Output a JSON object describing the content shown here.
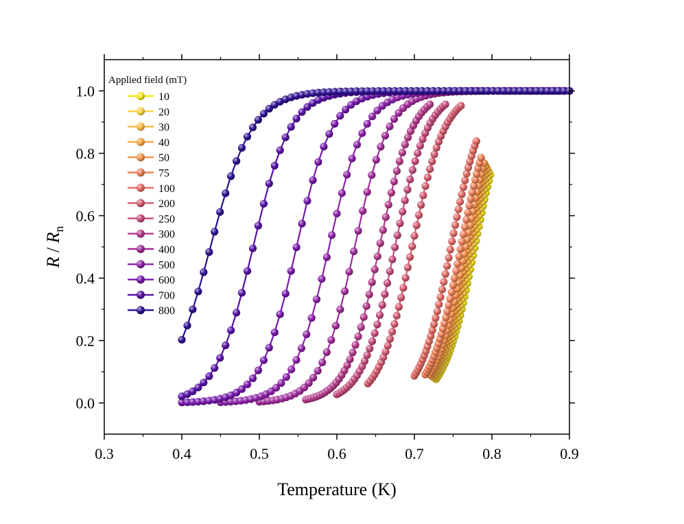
{
  "chart_data": {
    "type": "line",
    "xlabel": "Temperature (K)",
    "ylabel_main": "R",
    "ylabel_sep": " / ",
    "ylabel_var": "R",
    "ylabel_sub": "n",
    "xlim": [
      0.3,
      0.9
    ],
    "ylim": [
      -0.1,
      1.1
    ],
    "x_ticks": [
      0.3,
      0.4,
      0.5,
      0.6,
      0.7,
      0.8,
      0.9
    ],
    "x_tick_labels": [
      "0.3",
      "0.4",
      "0.5",
      "0.6",
      "0.7",
      "0.8",
      "0.9"
    ],
    "y_ticks": [
      0.0,
      0.2,
      0.4,
      0.6,
      0.8,
      1.0
    ],
    "y_tick_labels": [
      "0.0",
      "0.2",
      "0.4",
      "0.6",
      "0.8",
      "1.0"
    ],
    "grid": false,
    "legend_title": "Applied field (mT)",
    "legend_position": "top-left",
    "series": [
      {
        "name": "10",
        "color": "#f5e51b",
        "t_start": 0.728,
        "t_end": 0.798,
        "t_mid": 0.778,
        "width": 0.02,
        "n_points": 39
      },
      {
        "name": "20",
        "color": "#f7d13d",
        "t_start": 0.726,
        "t_end": 0.796,
        "t_mid": 0.775,
        "width": 0.02,
        "n_points": 39
      },
      {
        "name": "30",
        "color": "#f8b93e",
        "t_start": 0.724,
        "t_end": 0.794,
        "t_mid": 0.772,
        "width": 0.02,
        "n_points": 39
      },
      {
        "name": "40",
        "color": "#f6a443",
        "t_start": 0.722,
        "t_end": 0.792,
        "t_mid": 0.769,
        "width": 0.02,
        "n_points": 39
      },
      {
        "name": "50",
        "color": "#f39049",
        "t_start": 0.72,
        "t_end": 0.79,
        "t_mid": 0.766,
        "width": 0.02,
        "n_points": 39
      },
      {
        "name": "75",
        "color": "#ec7e56",
        "t_start": 0.714,
        "t_end": 0.786,
        "t_mid": 0.76,
        "width": 0.02,
        "n_points": 39
      },
      {
        "name": "100",
        "color": "#e06a62",
        "t_start": 0.7,
        "t_end": 0.78,
        "t_mid": 0.747,
        "width": 0.02,
        "n_points": 39
      },
      {
        "name": "200",
        "color": "#d2596d",
        "t_start": 0.64,
        "t_end": 0.76,
        "t_mid": 0.697,
        "width": 0.021,
        "n_points": 43
      },
      {
        "name": "250",
        "color": "#c34a7c",
        "t_start": 0.6,
        "t_end": 0.74,
        "t_mid": 0.675,
        "width": 0.021,
        "n_points": 44
      },
      {
        "name": "300",
        "color": "#b2398a",
        "t_start": 0.56,
        "t_end": 0.72,
        "t_mid": 0.655,
        "width": 0.021,
        "n_points": 46
      },
      {
        "name": "400",
        "color": "#9e2b99",
        "t_start": 0.5,
        "t_end": 0.9,
        "t_mid": 0.623,
        "width": 0.022,
        "n_points": 70
      },
      {
        "name": "500",
        "color": "#8a21a6",
        "t_start": 0.45,
        "t_end": 0.9,
        "t_mid": 0.59,
        "width": 0.023,
        "n_points": 70
      },
      {
        "name": "600",
        "color": "#7416a8",
        "t_start": 0.4,
        "t_end": 0.9,
        "t_mid": 0.548,
        "width": 0.023,
        "n_points": 72
      },
      {
        "name": "700",
        "color": "#5410a2",
        "t_start": 0.4,
        "t_end": 0.9,
        "t_mid": 0.492,
        "width": 0.024,
        "n_points": 72
      },
      {
        "name": "800",
        "color": "#2d0f8f",
        "t_start": 0.4,
        "t_end": 0.9,
        "t_mid": 0.437,
        "width": 0.027,
        "n_points": 72
      }
    ]
  }
}
